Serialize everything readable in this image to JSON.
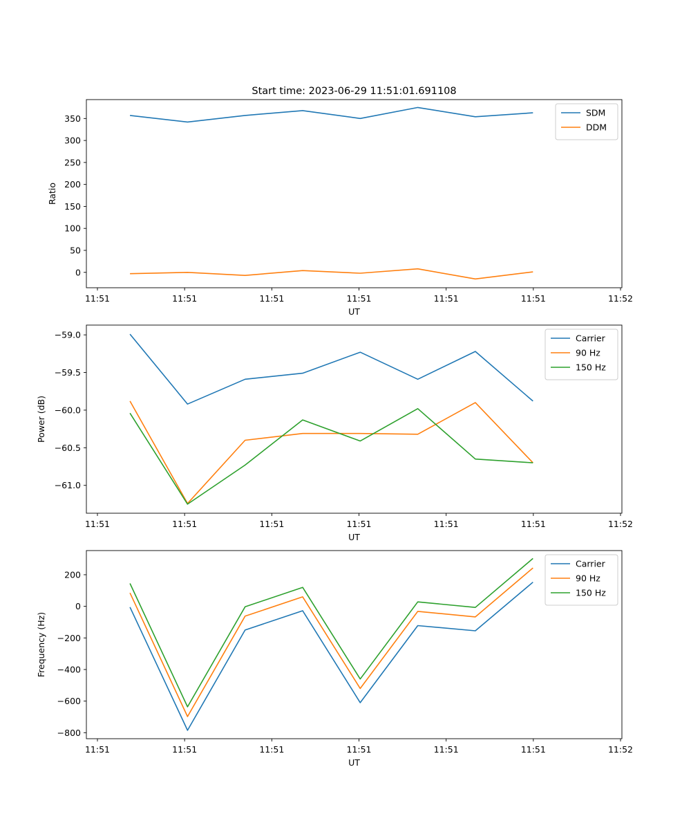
{
  "title": "Start time: 2023-06-29 11:51:01.691108",
  "colors": {
    "blue": "#1f77b4",
    "orange": "#ff7f0e",
    "green": "#2ca02c"
  },
  "chart_data": [
    {
      "type": "line",
      "title": "Start time: 2023-06-29 11:51:01.691108",
      "xlabel": "UT",
      "ylabel": "Ratio",
      "x_tick_labels": [
        "11:51",
        "11:51",
        "11:51",
        "11:51",
        "11:51",
        "11:51",
        "11:52"
      ],
      "xlim": [
        0,
        6.14
      ],
      "x": [
        0.5,
        1.16,
        1.82,
        2.48,
        3.14,
        3.8,
        4.46,
        5.12
      ],
      "ylim": [
        -35,
        393
      ],
      "yticks": [
        0,
        50,
        100,
        150,
        200,
        250,
        300,
        350
      ],
      "ytick_labels": [
        "0",
        "50",
        "100",
        "150",
        "200",
        "250",
        "300",
        "350"
      ],
      "legend": "top-right",
      "grid": false,
      "series": [
        {
          "name": "SDM",
          "color": "#1f77b4",
          "values": [
            357,
            342,
            357,
            368,
            350,
            375,
            354,
            363
          ]
        },
        {
          "name": "DDM",
          "color": "#ff7f0e",
          "values": [
            -3,
            0,
            -7,
            4,
            -2,
            8,
            -15,
            1
          ]
        }
      ]
    },
    {
      "type": "line",
      "xlabel": "UT",
      "ylabel": "Power (dB)",
      "x_tick_labels": [
        "11:51",
        "11:51",
        "11:51",
        "11:51",
        "11:51",
        "11:51",
        "11:52"
      ],
      "xlim": [
        0,
        6.14
      ],
      "x": [
        0.5,
        1.16,
        1.82,
        2.48,
        3.14,
        3.8,
        4.46,
        5.12
      ],
      "ylim": [
        -61.37,
        -58.87
      ],
      "yticks": [
        -61.0,
        -60.5,
        -60.0,
        -59.5,
        -59.0
      ],
      "ytick_labels": [
        "−61.0",
        "−60.5",
        "−60.0",
        "−59.5",
        "−59.0"
      ],
      "legend": "top-right",
      "grid": false,
      "series": [
        {
          "name": "Carrier",
          "color": "#1f77b4",
          "values": [
            -58.99,
            -59.92,
            -59.59,
            -59.51,
            -59.23,
            -59.59,
            -59.22,
            -59.88
          ]
        },
        {
          "name": "90 Hz",
          "color": "#ff7f0e",
          "values": [
            -59.88,
            -61.24,
            -60.4,
            -60.31,
            -60.31,
            -60.32,
            -59.9,
            -60.7
          ]
        },
        {
          "name": "150 Hz",
          "color": "#2ca02c",
          "values": [
            -60.04,
            -61.25,
            -60.73,
            -60.13,
            -60.41,
            -59.98,
            -60.65,
            -60.7
          ]
        }
      ]
    },
    {
      "type": "line",
      "xlabel": "UT",
      "ylabel": "Frequency (Hz)",
      "x_tick_labels": [
        "11:51",
        "11:51",
        "11:51",
        "11:51",
        "11:51",
        "11:51",
        "11:52"
      ],
      "xlim": [
        0,
        6.14
      ],
      "x": [
        0.5,
        1.16,
        1.82,
        2.48,
        3.14,
        3.8,
        4.46,
        5.12
      ],
      "ylim": [
        -838,
        353
      ],
      "yticks": [
        -800,
        -600,
        -400,
        -200,
        0,
        200
      ],
      "ytick_labels": [
        "−800",
        "−600",
        "−400",
        "−200",
        "0",
        "200"
      ],
      "legend": "top-right",
      "grid": false,
      "series": [
        {
          "name": "Carrier",
          "color": "#1f77b4",
          "values": [
            -5,
            -785,
            -150,
            -28,
            -610,
            -122,
            -155,
            153
          ]
        },
        {
          "name": "90 Hz",
          "color": "#ff7f0e",
          "values": [
            85,
            -698,
            -62,
            60,
            -520,
            -32,
            -67,
            243
          ]
        },
        {
          "name": "150 Hz",
          "color": "#2ca02c",
          "values": [
            145,
            -636,
            -3,
            120,
            -460,
            28,
            -7,
            303
          ]
        }
      ]
    }
  ]
}
